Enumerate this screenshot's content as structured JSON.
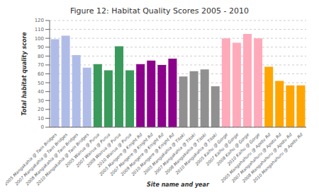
{
  "chart_data": {
    "type": "bar",
    "title": "Figure 12: Habitat Quality Scores 2005 - 2010",
    "xlabel": "Site name and year",
    "ylabel": "Total habitat quality score",
    "categories": [
      "2005 Mangakahia @ Twin Bridges",
      "2007 Mangakahia @ Twin Bridges",
      "2008 Mangakahia @ Twin Bridges",
      "2010 Mangakahia @ Twin Bridges",
      "2005 Wairua @ Purua",
      "2007 Wairua @ Purua",
      "2009 Wairua @ Purua",
      "2010 Wairua @ Purua",
      "2005 Mangere @ Knight Rd",
      "2007 Mangere @ Knight Rd",
      "2009 Mangere @ Knight Rd",
      "2010 Mangere @ Knight Rd",
      "2005 Mangakahia @ Titoki",
      "2007 Mangakahia @ Titoki",
      "2008 Mangakahia @ Titoki",
      "2010 Mangakahia @ Titoki",
      "2005 Kaihu @ Gorge",
      "2007 Kaihu @ Gorge",
      "2008 Kaihu @ Gorge",
      "2010 Kaihu @ Gorge",
      "2005 Mangahahuru @ Apotu Rd",
      "2007 Mangahahuru @ Apotu Rd",
      "2008 Mangahahuru @ Apotu Rd",
      "2010 Mangahahuru @ Apotu Rd"
    ],
    "values": [
      99,
      103,
      81,
      67,
      71,
      64,
      91,
      64,
      71,
      75,
      70,
      77,
      57,
      63,
      65,
      46,
      100,
      95,
      105,
      100,
      68,
      52,
      47,
      47
    ],
    "colors": [
      "#b0bce8",
      "#b0bce8",
      "#b0bce8",
      "#b0bce8",
      "#3a9a5c",
      "#3a9a5c",
      "#3a9a5c",
      "#3a9a5c",
      "#8b008b",
      "#8b008b",
      "#8b008b",
      "#8b008b",
      "#909090",
      "#909090",
      "#909090",
      "#909090",
      "#ffaabb",
      "#ffaabb",
      "#ffaabb",
      "#ffaabb",
      "#ffa500",
      "#ffa500",
      "#ffa500",
      "#ffa500"
    ],
    "ylim": [
      0,
      120
    ],
    "yticks": [
      0,
      10,
      20,
      30,
      40,
      50,
      60,
      70,
      80,
      90,
      100,
      110,
      120
    ],
    "grid": true
  }
}
